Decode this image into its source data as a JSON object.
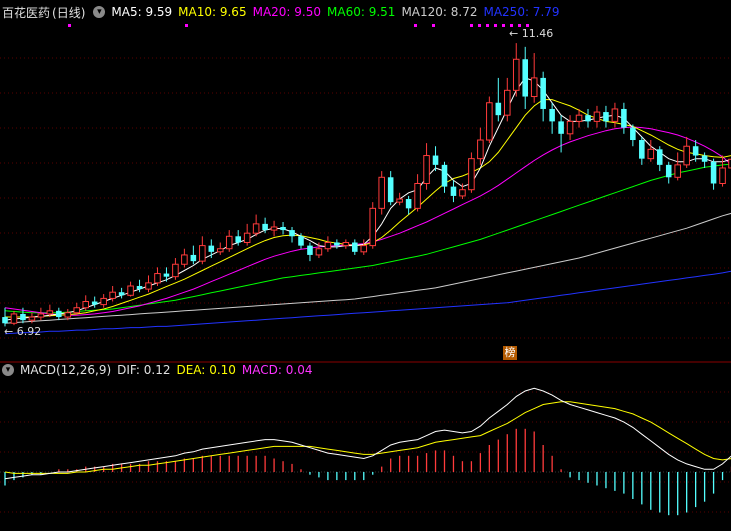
{
  "stock": {
    "name": "百花医药",
    "period": "(日线)"
  },
  "ma": [
    {
      "label": "MA5:",
      "value": "9.59",
      "color": "#ffffff"
    },
    {
      "label": "MA10:",
      "value": "9.65",
      "color": "#ffff00"
    },
    {
      "label": "MA20:",
      "value": "9.50",
      "color": "#ff00ff"
    },
    {
      "label": "MA60:",
      "value": "9.51",
      "color": "#00ff00"
    },
    {
      "label": "MA120:",
      "value": "8.72",
      "color": "#cccccc"
    },
    {
      "label": "MA250:",
      "value": "7.79",
      "color": "#2233ff"
    }
  ],
  "price_marks": {
    "high": "11.46",
    "low": "6.92"
  },
  "badge": "榜",
  "macd": {
    "title": "MACD(12,26,9)",
    "dif_label": "DIF:",
    "dif": "0.12",
    "dea_label": "DEA:",
    "dea": "0.10",
    "macd_label": "MACD:",
    "macd": "0.04"
  },
  "icons": {
    "collapse": "chevron-down-icon"
  },
  "chart_data": {
    "type": "candlestick",
    "price_range": [
      6.6,
      11.8
    ],
    "candles": [
      [
        7.05,
        6.95,
        7.2,
        6.9
      ],
      [
        6.95,
        7.1,
        7.15,
        6.92
      ],
      [
        7.1,
        7.0,
        7.2,
        6.95
      ],
      [
        7.0,
        7.05,
        7.12,
        6.95
      ],
      [
        7.05,
        7.1,
        7.2,
        7.0
      ],
      [
        7.1,
        7.15,
        7.25,
        7.05
      ],
      [
        7.15,
        7.05,
        7.2,
        7.0
      ],
      [
        7.05,
        7.12,
        7.18,
        7.0
      ],
      [
        7.12,
        7.2,
        7.28,
        7.08
      ],
      [
        7.2,
        7.3,
        7.4,
        7.15
      ],
      [
        7.3,
        7.25,
        7.38,
        7.2
      ],
      [
        7.25,
        7.35,
        7.42,
        7.2
      ],
      [
        7.35,
        7.45,
        7.55,
        7.3
      ],
      [
        7.45,
        7.4,
        7.52,
        7.35
      ],
      [
        7.4,
        7.55,
        7.62,
        7.38
      ],
      [
        7.55,
        7.5,
        7.65,
        7.45
      ],
      [
        7.5,
        7.6,
        7.72,
        7.45
      ],
      [
        7.6,
        7.75,
        7.85,
        7.55
      ],
      [
        7.75,
        7.7,
        7.85,
        7.62
      ],
      [
        7.7,
        7.9,
        8.0,
        7.65
      ],
      [
        7.9,
        8.05,
        8.15,
        7.85
      ],
      [
        8.05,
        7.95,
        8.2,
        7.9
      ],
      [
        7.95,
        8.2,
        8.35,
        7.9
      ],
      [
        8.2,
        8.1,
        8.3,
        8.0
      ],
      [
        8.1,
        8.15,
        8.25,
        8.05
      ],
      [
        8.15,
        8.35,
        8.45,
        8.1
      ],
      [
        8.35,
        8.25,
        8.45,
        8.2
      ],
      [
        8.25,
        8.4,
        8.55,
        8.2
      ],
      [
        8.4,
        8.55,
        8.7,
        8.35
      ],
      [
        8.55,
        8.45,
        8.65,
        8.4
      ],
      [
        8.45,
        8.5,
        8.6,
        8.35
      ],
      [
        8.5,
        8.45,
        8.58,
        8.38
      ],
      [
        8.45,
        8.35,
        8.5,
        8.25
      ],
      [
        8.35,
        8.2,
        8.4,
        8.15
      ],
      [
        8.2,
        8.05,
        8.25,
        7.95
      ],
      [
        8.05,
        8.15,
        8.25,
        8.0
      ],
      [
        8.15,
        8.25,
        8.35,
        8.1
      ],
      [
        8.25,
        8.2,
        8.3,
        8.15
      ],
      [
        8.2,
        8.25,
        8.3,
        8.15
      ],
      [
        8.25,
        8.1,
        8.3,
        8.05
      ],
      [
        8.1,
        8.2,
        8.3,
        8.05
      ],
      [
        8.2,
        8.8,
        8.9,
        8.15
      ],
      [
        8.8,
        9.3,
        9.4,
        8.7
      ],
      [
        9.3,
        8.9,
        9.4,
        8.85
      ],
      [
        8.9,
        8.95,
        9.05,
        8.85
      ],
      [
        8.95,
        8.8,
        9.0,
        8.7
      ],
      [
        8.8,
        9.2,
        9.35,
        8.75
      ],
      [
        9.2,
        9.65,
        9.85,
        9.1
      ],
      [
        9.65,
        9.5,
        9.8,
        9.4
      ],
      [
        9.5,
        9.15,
        9.55,
        9.05
      ],
      [
        9.15,
        9.0,
        9.25,
        8.9
      ],
      [
        9.0,
        9.1,
        9.2,
        8.95
      ],
      [
        9.1,
        9.6,
        9.7,
        9.05
      ],
      [
        9.6,
        9.9,
        10.1,
        9.5
      ],
      [
        9.9,
        10.5,
        10.6,
        9.85
      ],
      [
        10.5,
        10.3,
        10.9,
        10.2
      ],
      [
        10.3,
        10.7,
        10.9,
        10.2
      ],
      [
        10.7,
        11.2,
        11.46,
        10.6
      ],
      [
        11.2,
        10.6,
        11.4,
        10.4
      ],
      [
        10.6,
        10.9,
        11.3,
        10.5
      ],
      [
        10.9,
        10.4,
        11.0,
        10.2
      ],
      [
        10.4,
        10.2,
        10.5,
        10.0
      ],
      [
        10.2,
        10.0,
        10.3,
        9.7
      ],
      [
        10.0,
        10.2,
        10.3,
        9.9
      ],
      [
        10.2,
        10.3,
        10.4,
        10.1
      ],
      [
        10.3,
        10.2,
        10.4,
        10.1
      ],
      [
        10.2,
        10.35,
        10.45,
        10.1
      ],
      [
        10.35,
        10.2,
        10.45,
        10.1
      ],
      [
        10.2,
        10.4,
        10.5,
        10.1
      ],
      [
        10.4,
        10.1,
        10.5,
        10.0
      ],
      [
        10.1,
        9.9,
        10.15,
        9.8
      ],
      [
        9.9,
        9.6,
        9.95,
        9.5
      ],
      [
        9.6,
        9.75,
        9.9,
        9.55
      ],
      [
        9.75,
        9.5,
        9.8,
        9.4
      ],
      [
        9.5,
        9.3,
        9.55,
        9.2
      ],
      [
        9.3,
        9.5,
        9.7,
        9.25
      ],
      [
        9.5,
        9.8,
        9.95,
        9.45
      ],
      [
        9.8,
        9.65,
        9.9,
        9.55
      ],
      [
        9.65,
        9.55,
        9.7,
        9.45
      ],
      [
        9.55,
        9.2,
        9.6,
        9.1
      ],
      [
        9.2,
        9.45,
        9.65,
        9.15
      ],
      [
        9.45,
        9.59,
        9.7,
        9.4
      ]
    ],
    "ma5": [
      7.0,
      7.02,
      7.03,
      7.05,
      7.06,
      7.08,
      7.1,
      7.12,
      7.15,
      7.2,
      7.25,
      7.3,
      7.35,
      7.4,
      7.45,
      7.5,
      7.55,
      7.6,
      7.65,
      7.72,
      7.8,
      7.88,
      7.98,
      8.05,
      8.12,
      8.2,
      8.25,
      8.3,
      8.38,
      8.45,
      8.48,
      8.47,
      8.42,
      8.35,
      8.28,
      8.2,
      8.18,
      8.18,
      8.2,
      8.2,
      8.22,
      8.35,
      8.55,
      8.8,
      8.95,
      9.05,
      9.1,
      9.3,
      9.45,
      9.4,
      9.25,
      9.15,
      9.2,
      9.45,
      9.8,
      10.1,
      10.4,
      10.7,
      10.9,
      10.85,
      10.7,
      10.5,
      10.3,
      10.2,
      10.2,
      10.22,
      10.25,
      10.28,
      10.3,
      10.25,
      10.1,
      9.95,
      9.8,
      9.7,
      9.6,
      9.55,
      9.55,
      9.6,
      9.6,
      9.55,
      9.55,
      9.59
    ],
    "ma10": [
      7.05,
      7.05,
      7.05,
      7.05,
      7.06,
      7.07,
      7.08,
      7.09,
      7.1,
      7.12,
      7.15,
      7.18,
      7.22,
      7.27,
      7.32,
      7.37,
      7.42,
      7.48,
      7.54,
      7.6,
      7.66,
      7.73,
      7.8,
      7.87,
      7.94,
      8.01,
      8.08,
      8.15,
      8.22,
      8.28,
      8.33,
      8.36,
      8.37,
      8.36,
      8.33,
      8.3,
      8.26,
      8.24,
      8.22,
      8.2,
      8.21,
      8.25,
      8.33,
      8.45,
      8.58,
      8.7,
      8.82,
      8.95,
      9.08,
      9.2,
      9.28,
      9.32,
      9.38,
      9.45,
      9.55,
      9.7,
      9.9,
      10.1,
      10.3,
      10.45,
      10.55,
      10.55,
      10.5,
      10.45,
      10.38,
      10.3,
      10.25,
      10.2,
      10.18,
      10.15,
      10.12,
      10.05,
      9.98,
      9.9,
      9.82,
      9.75,
      9.7,
      9.68,
      9.65,
      9.63,
      9.62,
      9.65
    ],
    "ma20": [
      7.2,
      7.18,
      7.16,
      7.14,
      7.12,
      7.1,
      7.09,
      7.08,
      7.08,
      7.09,
      7.1,
      7.12,
      7.14,
      7.17,
      7.2,
      7.23,
      7.27,
      7.31,
      7.35,
      7.4,
      7.45,
      7.5,
      7.56,
      7.62,
      7.68,
      7.74,
      7.8,
      7.86,
      7.92,
      7.98,
      8.03,
      8.07,
      8.11,
      8.14,
      8.16,
      8.18,
      8.19,
      8.2,
      8.21,
      8.22,
      8.23,
      8.26,
      8.3,
      8.35,
      8.4,
      8.46,
      8.52,
      8.58,
      8.65,
      8.72,
      8.79,
      8.86,
      8.93,
      9.0,
      9.08,
      9.17,
      9.27,
      9.37,
      9.47,
      9.57,
      9.66,
      9.74,
      9.81,
      9.87,
      9.92,
      9.97,
      10.01,
      10.05,
      10.08,
      10.1,
      10.11,
      10.1,
      10.08,
      10.05,
      10.02,
      9.98,
      9.93,
      9.87,
      9.8,
      9.72,
      9.63,
      9.5
    ],
    "ma60": [
      7.15,
      7.14,
      7.13,
      7.12,
      7.12,
      7.12,
      7.12,
      7.13,
      7.14,
      7.15,
      7.16,
      7.17,
      7.18,
      7.2,
      7.22,
      7.24,
      7.26,
      7.28,
      7.3,
      7.32,
      7.35,
      7.38,
      7.41,
      7.44,
      7.47,
      7.5,
      7.53,
      7.56,
      7.59,
      7.62,
      7.65,
      7.68,
      7.7,
      7.72,
      7.74,
      7.76,
      7.78,
      7.8,
      7.82,
      7.84,
      7.86,
      7.88,
      7.91,
      7.94,
      7.97,
      8.0,
      8.03,
      8.06,
      8.1,
      8.14,
      8.18,
      8.22,
      8.26,
      8.3,
      8.35,
      8.4,
      8.45,
      8.5,
      8.55,
      8.6,
      8.65,
      8.7,
      8.75,
      8.8,
      8.85,
      8.9,
      8.95,
      9.0,
      9.05,
      9.1,
      9.15,
      9.2,
      9.25,
      9.29,
      9.33,
      9.37,
      9.4,
      9.43,
      9.46,
      9.48,
      9.5,
      9.51
    ],
    "ma120": [
      6.95,
      6.96,
      6.97,
      6.98,
      6.99,
      7.0,
      7.01,
      7.02,
      7.03,
      7.04,
      7.05,
      7.06,
      7.07,
      7.08,
      7.09,
      7.1,
      7.11,
      7.12,
      7.13,
      7.14,
      7.15,
      7.16,
      7.17,
      7.18,
      7.19,
      7.2,
      7.21,
      7.22,
      7.23,
      7.24,
      7.25,
      7.26,
      7.27,
      7.28,
      7.29,
      7.3,
      7.31,
      7.32,
      7.33,
      7.34,
      7.36,
      7.38,
      7.4,
      7.42,
      7.44,
      7.46,
      7.48,
      7.5,
      7.52,
      7.55,
      7.58,
      7.61,
      7.64,
      7.67,
      7.7,
      7.73,
      7.76,
      7.79,
      7.82,
      7.85,
      7.88,
      7.91,
      7.94,
      7.97,
      8.0,
      8.04,
      8.08,
      8.12,
      8.16,
      8.2,
      8.24,
      8.28,
      8.32,
      8.36,
      8.4,
      8.44,
      8.48,
      8.53,
      8.58,
      8.63,
      8.68,
      8.72
    ],
    "ma250": [
      6.78,
      6.79,
      6.8,
      6.8,
      6.81,
      6.82,
      6.82,
      6.83,
      6.84,
      6.84,
      6.85,
      6.86,
      6.86,
      6.87,
      6.88,
      6.88,
      6.89,
      6.9,
      6.9,
      6.91,
      6.92,
      6.93,
      6.94,
      6.95,
      6.96,
      6.97,
      6.98,
      6.99,
      7.0,
      7.01,
      7.02,
      7.03,
      7.04,
      7.05,
      7.06,
      7.07,
      7.08,
      7.09,
      7.1,
      7.11,
      7.12,
      7.13,
      7.14,
      7.15,
      7.16,
      7.17,
      7.18,
      7.19,
      7.2,
      7.21,
      7.22,
      7.23,
      7.24,
      7.25,
      7.26,
      7.27,
      7.28,
      7.3,
      7.32,
      7.34,
      7.36,
      7.38,
      7.4,
      7.42,
      7.44,
      7.46,
      7.48,
      7.5,
      7.52,
      7.54,
      7.56,
      7.58,
      7.6,
      7.62,
      7.64,
      7.66,
      7.68,
      7.7,
      7.72,
      7.74,
      7.76,
      7.79
    ],
    "dif": [
      -0.05,
      -0.04,
      -0.03,
      -0.02,
      -0.02,
      -0.01,
      0.0,
      0.0,
      0.01,
      0.02,
      0.03,
      0.04,
      0.05,
      0.06,
      0.07,
      0.08,
      0.09,
      0.1,
      0.11,
      0.12,
      0.14,
      0.15,
      0.17,
      0.18,
      0.19,
      0.2,
      0.21,
      0.22,
      0.23,
      0.24,
      0.24,
      0.23,
      0.22,
      0.2,
      0.18,
      0.16,
      0.14,
      0.13,
      0.12,
      0.11,
      0.1,
      0.12,
      0.16,
      0.2,
      0.22,
      0.23,
      0.24,
      0.27,
      0.3,
      0.31,
      0.3,
      0.29,
      0.3,
      0.34,
      0.4,
      0.45,
      0.5,
      0.56,
      0.6,
      0.62,
      0.6,
      0.57,
      0.53,
      0.5,
      0.48,
      0.46,
      0.44,
      0.42,
      0.4,
      0.37,
      0.33,
      0.28,
      0.23,
      0.18,
      0.13,
      0.09,
      0.06,
      0.04,
      0.02,
      0.02,
      0.06,
      0.12
    ],
    "dea": [
      0.0,
      -0.01,
      -0.01,
      -0.01,
      -0.01,
      -0.01,
      -0.01,
      -0.01,
      0.0,
      0.0,
      0.01,
      0.02,
      0.02,
      0.03,
      0.04,
      0.05,
      0.05,
      0.06,
      0.07,
      0.08,
      0.09,
      0.1,
      0.11,
      0.12,
      0.13,
      0.14,
      0.15,
      0.16,
      0.17,
      0.18,
      0.19,
      0.19,
      0.19,
      0.19,
      0.19,
      0.18,
      0.17,
      0.16,
      0.15,
      0.14,
      0.13,
      0.13,
      0.14,
      0.15,
      0.16,
      0.17,
      0.18,
      0.2,
      0.22,
      0.23,
      0.24,
      0.25,
      0.26,
      0.27,
      0.3,
      0.33,
      0.36,
      0.4,
      0.44,
      0.47,
      0.5,
      0.51,
      0.52,
      0.52,
      0.51,
      0.5,
      0.49,
      0.48,
      0.47,
      0.45,
      0.43,
      0.4,
      0.37,
      0.33,
      0.29,
      0.25,
      0.21,
      0.17,
      0.13,
      0.1,
      0.09,
      0.1
    ],
    "macd_hist": [
      -0.1,
      -0.06,
      -0.04,
      -0.02,
      -0.02,
      0.0,
      0.02,
      0.02,
      0.02,
      0.04,
      0.04,
      0.04,
      0.06,
      0.06,
      0.06,
      0.06,
      0.08,
      0.08,
      0.08,
      0.08,
      0.1,
      0.1,
      0.12,
      0.12,
      0.12,
      0.12,
      0.12,
      0.12,
      0.12,
      0.12,
      0.1,
      0.08,
      0.06,
      0.02,
      -0.02,
      -0.04,
      -0.06,
      -0.06,
      -0.06,
      -0.06,
      -0.06,
      -0.02,
      0.04,
      0.1,
      0.12,
      0.12,
      0.12,
      0.14,
      0.16,
      0.16,
      0.12,
      0.08,
      0.08,
      0.14,
      0.2,
      0.24,
      0.28,
      0.32,
      0.32,
      0.3,
      0.2,
      0.12,
      0.02,
      -0.04,
      -0.06,
      -0.08,
      -0.1,
      -0.12,
      -0.14,
      -0.16,
      -0.2,
      -0.24,
      -0.28,
      -0.3,
      -0.32,
      -0.32,
      -0.3,
      -0.26,
      -0.22,
      -0.16,
      -0.06,
      0.04
    ]
  }
}
